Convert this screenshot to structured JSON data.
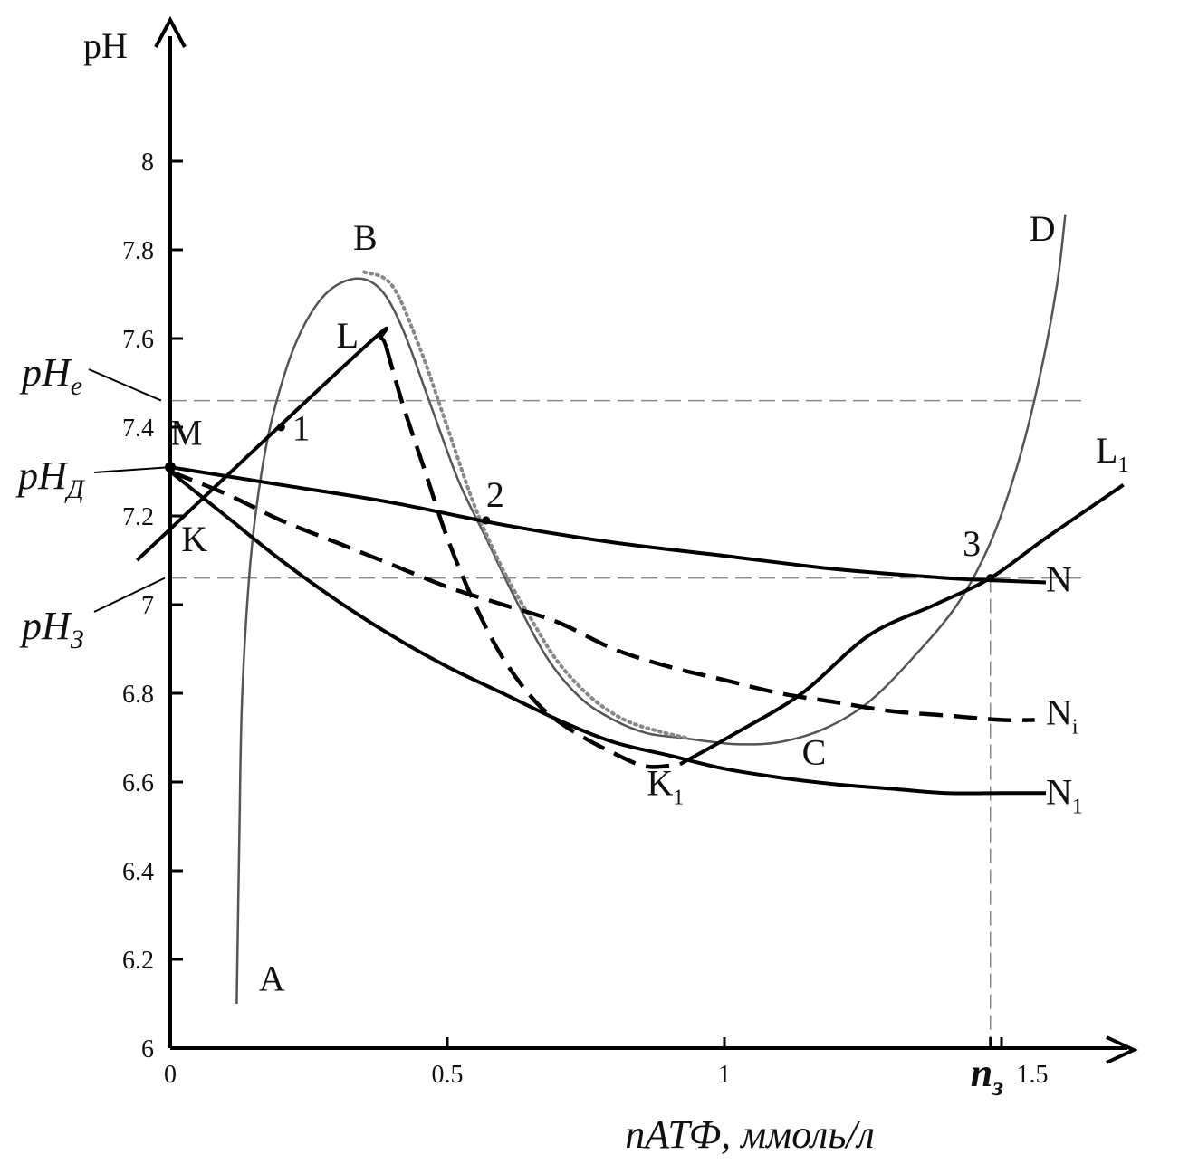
{
  "chart_data": {
    "type": "line",
    "title": "",
    "ylabel": "pH",
    "xlabel": "nАТФ, ммоль/л",
    "xlim": [
      0,
      1.75
    ],
    "ylim": [
      6,
      8.4
    ],
    "x_ticks": [
      "0",
      "0.5",
      "1",
      "1.5"
    ],
    "y_ticks": [
      "6",
      "6.2",
      "6.4",
      "6.6",
      "6.8",
      "7",
      "7.2",
      "7.4",
      "7.6",
      "7.8",
      "8"
    ],
    "x_special_tick": {
      "label": "n",
      "sub": "з",
      "x": 1.48
    },
    "reference_lines": [
      {
        "name": "pHe",
        "label": "pH",
        "sub": "e",
        "y": 7.46
      },
      {
        "name": "pHd",
        "label": "pH",
        "sub": "Д",
        "y": 7.31
      },
      {
        "name": "pHz",
        "label": "pH",
        "sub": "З",
        "y": 7.06
      }
    ],
    "series": [
      {
        "key": "ABCD",
        "style": "solid-gray",
        "points": [
          [
            0.12,
            6.1
          ],
          [
            0.125,
            6.5
          ],
          [
            0.13,
            6.8
          ],
          [
            0.145,
            7.1
          ],
          [
            0.165,
            7.3
          ],
          [
            0.19,
            7.45
          ],
          [
            0.23,
            7.6
          ],
          [
            0.28,
            7.7
          ],
          [
            0.335,
            7.735
          ],
          [
            0.38,
            7.71
          ],
          [
            0.42,
            7.62
          ],
          [
            0.47,
            7.45
          ],
          [
            0.52,
            7.28
          ],
          [
            0.57,
            7.15
          ],
          [
            0.62,
            7.02
          ],
          [
            0.68,
            6.88
          ],
          [
            0.74,
            6.79
          ],
          [
            0.8,
            6.74
          ],
          [
            0.86,
            6.71
          ],
          [
            0.92,
            6.7
          ],
          [
            0.98,
            6.69
          ],
          [
            1.03,
            6.685
          ],
          [
            1.1,
            6.69
          ],
          [
            1.18,
            6.72
          ],
          [
            1.26,
            6.78
          ],
          [
            1.34,
            6.88
          ],
          [
            1.42,
            7.0
          ],
          [
            1.48,
            7.14
          ],
          [
            1.53,
            7.32
          ],
          [
            1.57,
            7.52
          ],
          [
            1.6,
            7.72
          ],
          [
            1.615,
            7.88
          ]
        ]
      },
      {
        "key": "ABCD-dotted",
        "style": "dotted-gray",
        "points": [
          [
            0.35,
            7.75
          ],
          [
            0.4,
            7.72
          ],
          [
            0.45,
            7.58
          ],
          [
            0.5,
            7.4
          ],
          [
            0.55,
            7.22
          ],
          [
            0.6,
            7.08
          ],
          [
            0.65,
            6.97
          ],
          [
            0.7,
            6.87
          ],
          [
            0.76,
            6.79
          ],
          [
            0.82,
            6.74
          ],
          [
            0.88,
            6.715
          ],
          [
            0.93,
            6.7
          ]
        ]
      },
      {
        "key": "KL",
        "style": "solid",
        "points": [
          [
            -0.06,
            7.1
          ],
          [
            0.35,
            7.58
          ],
          [
            0.38,
            7.6
          ],
          [
            0.39,
            7.58
          ]
        ]
      },
      {
        "key": "LK1",
        "style": "dashed",
        "points": [
          [
            0.39,
            7.58
          ],
          [
            0.42,
            7.45
          ],
          [
            0.46,
            7.3
          ],
          [
            0.5,
            7.15
          ],
          [
            0.55,
            7.0
          ],
          [
            0.6,
            6.88
          ],
          [
            0.66,
            6.78
          ],
          [
            0.72,
            6.72
          ],
          [
            0.8,
            6.665
          ],
          [
            0.86,
            6.635
          ],
          [
            0.92,
            6.64
          ]
        ]
      },
      {
        "key": "K1L1",
        "style": "solid",
        "points": [
          [
            0.92,
            6.64
          ],
          [
            1.02,
            6.71
          ],
          [
            1.14,
            6.8
          ],
          [
            1.26,
            6.93
          ],
          [
            1.38,
            7.0
          ],
          [
            1.48,
            7.06
          ],
          [
            1.58,
            7.15
          ],
          [
            1.72,
            7.27
          ]
        ]
      },
      {
        "key": "MN",
        "style": "solid",
        "points": [
          [
            0,
            7.31
          ],
          [
            0.2,
            7.27
          ],
          [
            0.4,
            7.23
          ],
          [
            0.6,
            7.18
          ],
          [
            0.8,
            7.14
          ],
          [
            1.0,
            7.11
          ],
          [
            1.2,
            7.08
          ],
          [
            1.4,
            7.06
          ],
          [
            1.48,
            7.055
          ],
          [
            1.58,
            7.05
          ]
        ]
      },
      {
        "key": "MNi",
        "style": "dashed",
        "points": [
          [
            0,
            7.3
          ],
          [
            0.1,
            7.25
          ],
          [
            0.2,
            7.19
          ],
          [
            0.3,
            7.14
          ],
          [
            0.4,
            7.09
          ],
          [
            0.5,
            7.04
          ],
          [
            0.6,
            7.0
          ],
          [
            0.7,
            6.96
          ],
          [
            0.8,
            6.9
          ],
          [
            0.9,
            6.86
          ],
          [
            1.0,
            6.83
          ],
          [
            1.1,
            6.8
          ],
          [
            1.2,
            6.78
          ],
          [
            1.3,
            6.76
          ],
          [
            1.4,
            6.75
          ],
          [
            1.5,
            6.74
          ],
          [
            1.56,
            6.74
          ]
        ]
      },
      {
        "key": "MN1",
        "style": "solid",
        "points": [
          [
            0,
            7.3
          ],
          [
            0.1,
            7.2
          ],
          [
            0.2,
            7.1
          ],
          [
            0.3,
            7.01
          ],
          [
            0.4,
            6.93
          ],
          [
            0.5,
            6.86
          ],
          [
            0.6,
            6.8
          ],
          [
            0.7,
            6.74
          ],
          [
            0.8,
            6.69
          ],
          [
            0.9,
            6.66
          ],
          [
            1.0,
            6.63
          ],
          [
            1.1,
            6.61
          ],
          [
            1.2,
            6.595
          ],
          [
            1.3,
            6.585
          ],
          [
            1.4,
            6.575
          ],
          [
            1.5,
            6.575
          ],
          [
            1.58,
            6.575
          ]
        ]
      }
    ],
    "markers": [
      {
        "label": "1",
        "x": 0.2,
        "y": 7.4
      },
      {
        "label": "2",
        "x": 0.57,
        "y": 7.19
      },
      {
        "label": "3",
        "x": 1.48,
        "y": 7.06
      },
      {
        "label": "M",
        "x": 0.0,
        "y": 7.31
      }
    ],
    "point_labels": [
      {
        "text": "A",
        "sub": "",
        "x": 0.16,
        "y": 6.13
      },
      {
        "text": "B",
        "sub": "",
        "x": 0.33,
        "y": 7.8
      },
      {
        "text": "C",
        "sub": "",
        "x": 1.14,
        "y": 6.64
      },
      {
        "text": "D",
        "sub": "",
        "x": 1.55,
        "y": 7.82
      },
      {
        "text": "L",
        "sub": "",
        "x": 0.3,
        "y": 7.58
      },
      {
        "text": "M",
        "sub": "",
        "x": 0.0,
        "y": 7.36
      },
      {
        "text": "K",
        "sub": "",
        "x": 0.02,
        "y": 7.12
      },
      {
        "text": "K",
        "sub": "1",
        "x": 0.86,
        "y": 6.57
      },
      {
        "text": "L",
        "sub": "1",
        "x": 1.67,
        "y": 7.32
      },
      {
        "text": "N",
        "sub": "",
        "x": 1.58,
        "y": 7.03
      },
      {
        "text": "N",
        "sub": "i",
        "x": 1.58,
        "y": 6.73
      },
      {
        "text": "N",
        "sub": "1",
        "x": 1.58,
        "y": 6.55
      },
      {
        "text": "1",
        "sub": "",
        "x": 0.22,
        "y": 7.37
      },
      {
        "text": "2",
        "sub": "",
        "x": 0.57,
        "y": 7.22
      },
      {
        "text": "3",
        "sub": "",
        "x": 1.43,
        "y": 7.11
      }
    ]
  }
}
